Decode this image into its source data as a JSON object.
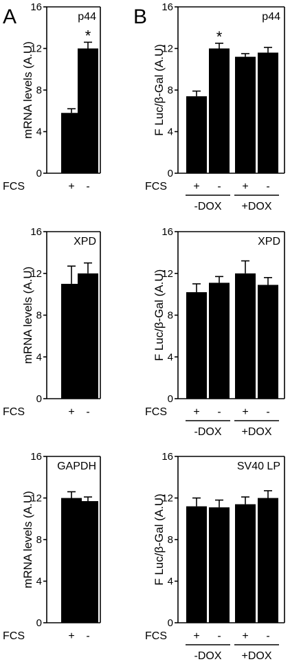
{
  "colors": {
    "bar": "#000000",
    "axis": "#000000",
    "background": "#ffffff"
  },
  "panel_letters": [
    "A",
    "B"
  ],
  "condition_row_label": "FCS",
  "fcs_signs": [
    "+",
    "-"
  ],
  "dox_labels": [
    "-DOX",
    "+DOX"
  ],
  "significance_mark": "*",
  "chart_data": [
    {
      "id": "A1",
      "type": "bar",
      "gene": "p44",
      "ylabel": "mRNA levels (A.U)",
      "ylim": [
        0,
        16
      ],
      "yticks": [
        0,
        4,
        8,
        12,
        16
      ],
      "categories": [
        "+",
        "-"
      ],
      "values": [
        5.8,
        12.0
      ],
      "errors": [
        0.4,
        0.6
      ],
      "significant": [
        false,
        true
      ]
    },
    {
      "id": "B1",
      "type": "bar",
      "gene": "p44",
      "ylabel": "F Luc/β-Gal (A.U)",
      "ylim": [
        0,
        16
      ],
      "yticks": [
        0,
        4,
        8,
        12,
        16
      ],
      "groups": [
        "-DOX",
        "+DOX"
      ],
      "categories": [
        "+",
        "-",
        "+",
        "-"
      ],
      "values": [
        7.4,
        12.0,
        11.2,
        11.6
      ],
      "errors": [
        0.5,
        0.5,
        0.3,
        0.5
      ],
      "significant": [
        false,
        true,
        false,
        false
      ]
    },
    {
      "id": "A2",
      "type": "bar",
      "gene": "XPD",
      "ylabel": "mRNA levels (A.U)",
      "ylim": [
        0,
        16
      ],
      "yticks": [
        0,
        4,
        8,
        12,
        16
      ],
      "categories": [
        "+",
        "-"
      ],
      "values": [
        11.0,
        12.0
      ],
      "errors": [
        1.7,
        1.0
      ],
      "significant": [
        false,
        false
      ]
    },
    {
      "id": "B2",
      "type": "bar",
      "gene": "XPD",
      "ylabel": "F Luc/β-Gal (A.U)",
      "ylim": [
        0,
        16
      ],
      "yticks": [
        0,
        4,
        8,
        12,
        16
      ],
      "groups": [
        "-DOX",
        "+DOX"
      ],
      "categories": [
        "+",
        "-",
        "+",
        "-"
      ],
      "values": [
        10.2,
        11.1,
        12.0,
        10.9
      ],
      "errors": [
        0.8,
        0.6,
        1.2,
        0.7
      ],
      "significant": [
        false,
        false,
        false,
        false
      ]
    },
    {
      "id": "A3",
      "type": "bar",
      "gene": "GAPDH",
      "ylabel": "mRNA levels (A.U)",
      "ylim": [
        0,
        16
      ],
      "yticks": [
        0,
        4,
        8,
        12,
        16
      ],
      "categories": [
        "+",
        "-"
      ],
      "values": [
        12.0,
        11.7
      ],
      "errors": [
        0.6,
        0.4
      ],
      "significant": [
        false,
        false
      ]
    },
    {
      "id": "B3",
      "type": "bar",
      "gene": "SV40 LP",
      "ylabel": "F Luc/β-Gal (A.U)",
      "ylim": [
        0,
        16
      ],
      "yticks": [
        0,
        4,
        8,
        12,
        16
      ],
      "groups": [
        "-DOX",
        "+DOX"
      ],
      "categories": [
        "+",
        "-",
        "+",
        "-"
      ],
      "values": [
        11.2,
        11.1,
        11.4,
        12.0
      ],
      "errors": [
        0.8,
        0.7,
        0.7,
        0.7
      ],
      "significant": [
        false,
        false,
        false,
        false
      ]
    }
  ]
}
